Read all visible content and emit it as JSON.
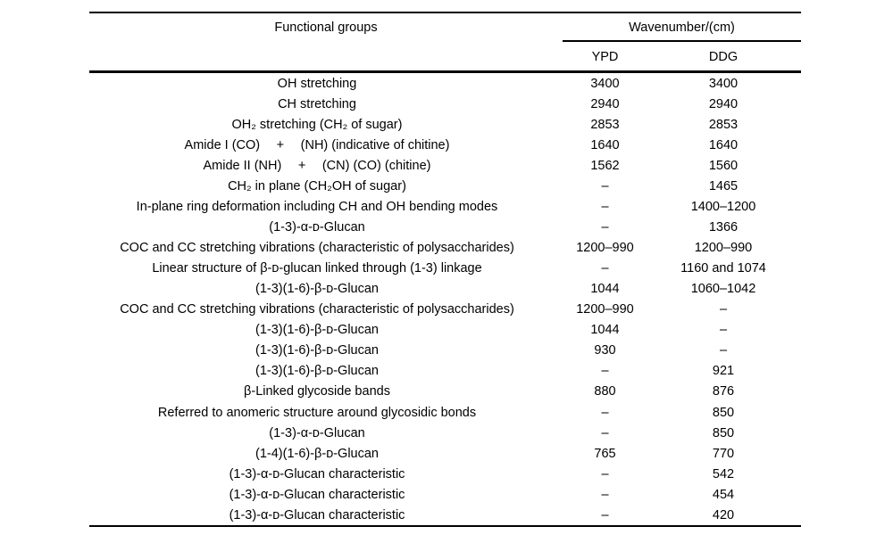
{
  "header": {
    "functional_groups": "Functional groups",
    "wavenumber": "Wavenumber/(cm)",
    "ypd": "YPD",
    "ddg": "DDG"
  },
  "rows": [
    {
      "group": "OH stretching",
      "ypd": "3400",
      "ddg": "3400"
    },
    {
      "group": "CH stretching",
      "ypd": "2940",
      "ddg": "2940"
    },
    {
      "group": "OH₂ stretching (CH₂ of sugar)",
      "ypd": "2853",
      "ddg": "2853"
    },
    {
      "group": "Amide I (CO)  +  (NH) (indicative of chitine)",
      "ypd": "1640",
      "ddg": "1640"
    },
    {
      "group": "Amide II (NH)  +  (CN) (CO) (chitine)",
      "ypd": "1562",
      "ddg": "1560"
    },
    {
      "group": "CH₂ in plane (CH₂OH of sugar)",
      "ypd": "–",
      "ddg": "1465"
    },
    {
      "group": "In-plane ring deformation including CH and OH bending modes",
      "ypd": "–",
      "ddg": "1400–1200"
    },
    {
      "group": "(1-3)-α-ᴅ-Glucan",
      "ypd": "–",
      "ddg": "1366"
    },
    {
      "group": "COC and CC stretching vibrations (characteristic of polysaccharides)",
      "ypd": "1200–990",
      "ddg": "1200–990"
    },
    {
      "group": "Linear structure of β-ᴅ-glucan linked through (1-3) linkage",
      "ypd": "–",
      "ddg": "1160 and 1074"
    },
    {
      "group": "(1-3)(1-6)-β-ᴅ-Glucan",
      "ypd": "1044",
      "ddg": "1060–1042"
    },
    {
      "group": "COC and CC stretching vibrations (characteristic of polysaccharides)",
      "ypd": "1200–990",
      "ddg": "–"
    },
    {
      "group": "(1-3)(1-6)-β-ᴅ-Glucan",
      "ypd": "1044",
      "ddg": "–"
    },
    {
      "group": "(1-3)(1-6)-β-ᴅ-Glucan",
      "ypd": "930",
      "ddg": "–"
    },
    {
      "group": "(1-3)(1-6)-β-ᴅ-Glucan",
      "ypd": "–",
      "ddg": "921"
    },
    {
      "group": "β-Linked glycoside bands",
      "ypd": "880",
      "ddg": "876"
    },
    {
      "group": "Referred to anomeric structure around glycosidic bonds",
      "ypd": "–",
      "ddg": "850"
    },
    {
      "group": "(1-3)-α-ᴅ-Glucan",
      "ypd": "–",
      "ddg": "850"
    },
    {
      "group": "(1-4)(1-6)-β-ᴅ-Glucan",
      "ypd": "765",
      "ddg": "770"
    },
    {
      "group": "(1-3)-α-ᴅ-Glucan characteristic",
      "ypd": "–",
      "ddg": "542"
    },
    {
      "group": "(1-3)-α-ᴅ-Glucan characteristic",
      "ypd": "–",
      "ddg": "454"
    },
    {
      "group": "(1-3)-α-ᴅ-Glucan characteristic",
      "ypd": "–",
      "ddg": "420"
    }
  ]
}
